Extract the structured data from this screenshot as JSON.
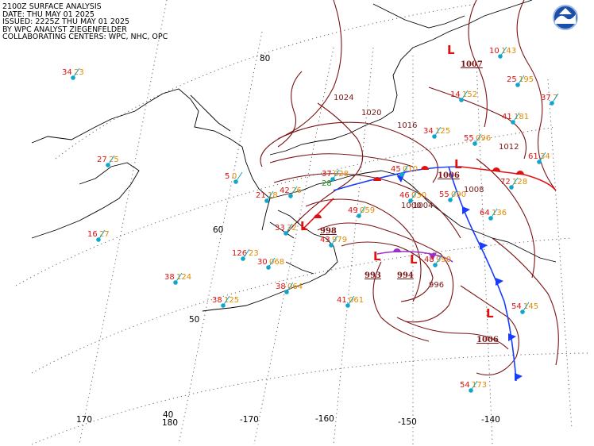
{
  "header": {
    "line1": "2100Z SURFACE ANALYSIS",
    "line2": "DATE: THU MAY 01 2025",
    "line3": "ISSUED: 2225Z THU MAY 01 2025",
    "line4": "BY WPC ANALYST ZIEGENFELDER",
    "line5": "COLLABORATING CENTERS: WPC, NHC, OPC"
  },
  "grid_labels": [
    "80",
    "60",
    "50",
    "40",
    "180",
    "170",
    "-170",
    "-160",
    "-150",
    "-140"
  ],
  "pressure_centers": [
    {
      "type": "L",
      "value": "1007"
    },
    {
      "type": "L",
      "value": "1006"
    },
    {
      "type": "L",
      "value": "998"
    },
    {
      "type": "L",
      "value": "993"
    },
    {
      "type": "L",
      "value": "994"
    },
    {
      "type": "L",
      "value": "1006"
    }
  ],
  "isobar_labels": [
    "1024",
    "1020",
    "1016",
    "1012",
    "1008",
    "1004",
    "1000",
    "996"
  ],
  "stations": [
    {
      "t": "34",
      "d": "23"
    },
    {
      "t": "27",
      "d": "25"
    },
    {
      "t": "16",
      "d": "27"
    },
    {
      "t": "5",
      "d": "0"
    },
    {
      "t": "21",
      "d": "18"
    },
    {
      "t": "42",
      "d": "26"
    },
    {
      "t": "33",
      "d": "32"
    },
    {
      "t": "37",
      "d": "028",
      "d2": "28"
    },
    {
      "t": "43",
      "d": "979"
    },
    {
      "t": "49",
      "d": "059"
    },
    {
      "t": "45",
      "d": "010"
    },
    {
      "t": "46",
      "d": "030"
    },
    {
      "t": "55",
      "d": "090"
    },
    {
      "t": "64",
      "d": "136"
    },
    {
      "t": "72",
      "d": "128"
    },
    {
      "t": "61",
      "d": "34"
    },
    {
      "t": "41",
      "d": "181"
    },
    {
      "t": "55",
      "d": "096"
    },
    {
      "t": "34",
      "d": "125"
    },
    {
      "t": "25",
      "d": "195"
    },
    {
      "t": "37",
      "d": "7"
    },
    {
      "t": "14",
      "d": "152"
    },
    {
      "t": "10",
      "d": "143"
    },
    {
      "t": "126",
      "d": "23"
    },
    {
      "t": "30",
      "d": "068"
    },
    {
      "t": "38",
      "d": "124"
    },
    {
      "t": "38",
      "d": "125"
    },
    {
      "t": "38",
      "d": "064"
    },
    {
      "t": "41",
      "d": "061"
    },
    {
      "t": "48",
      "d": "990"
    },
    {
      "t": "54",
      "d": "145"
    },
    {
      "t": "54",
      "d": "173"
    }
  ]
}
